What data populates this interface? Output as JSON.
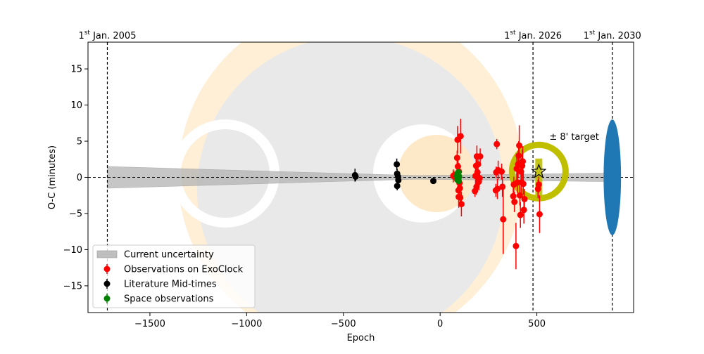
{
  "chart_data": {
    "type": "scatter",
    "xlabel": "Epoch",
    "ylabel": "O-C (minutes)",
    "xlim": [
      -1820,
      1000
    ],
    "ylim": [
      -18.7,
      18.7
    ],
    "xticks": [
      -1500,
      -1000,
      -500,
      0,
      500
    ],
    "xtick_labels": [
      "−1500",
      "−1000",
      "−500",
      "0",
      "500"
    ],
    "yticks": [
      -15,
      -10,
      -5,
      0,
      5,
      10,
      15
    ],
    "ytick_labels": [
      "−15",
      "−10",
      "−5",
      "0",
      "5",
      "10",
      "15"
    ],
    "date_markers": [
      {
        "x": -1720,
        "sup": "st",
        "pre": "1",
        "post": " Jan. 2005"
      },
      {
        "x": 480,
        "sup": "st",
        "pre": "1",
        "post": " Jan. 2026"
      },
      {
        "x": 890,
        "sup": "st",
        "pre": "1",
        "post": " Jan. 2030"
      }
    ],
    "uncertainty_band": {
      "x": [
        -1720,
        890
      ],
      "half_width_start": 1.5,
      "half_width_min": 0.25,
      "min_at": -120,
      "half_width_end": 0.6
    },
    "target_annotation": {
      "label": "± 8' target",
      "x": 510,
      "y": 0.8,
      "radius_x": 150,
      "radius_y": 3.8
    },
    "future_ellipse": {
      "x": 890,
      "y": 0,
      "half_width_x": 45,
      "half_height_y": 8
    },
    "legend": {
      "position": "lower left",
      "entries": [
        {
          "label": "Current uncertainty",
          "kind": "band",
          "color": "#bfbfbf"
        },
        {
          "label": "Observations on ExoClock",
          "kind": "errorbar",
          "color": "#ff0000"
        },
        {
          "label": "Literature Mid-times",
          "kind": "errorbar",
          "color": "#000000"
        },
        {
          "label": "Space observations",
          "kind": "errorbar",
          "color": "#008000"
        }
      ]
    },
    "colors": {
      "exoclock": "#ff0000",
      "literature": "#000000",
      "space": "#008000",
      "target_ring": "#bfbf00",
      "target_fill": "#bfbf00",
      "ellipse": "#1f77b4",
      "band": "#b3b3b3",
      "logo_ring": "#fde9c8",
      "logo_disc": "#e6e6e6"
    },
    "series": [
      {
        "name": "Literature Mid-times",
        "points": [
          [
            -440,
            0.3,
            0.9
          ],
          [
            -437,
            0.1,
            0.6
          ],
          [
            -224,
            1.8,
            0.8
          ],
          [
            -222,
            0.5,
            0.7
          ],
          [
            -218,
            0.1,
            0.5
          ],
          [
            -222,
            -1.2,
            0.6
          ],
          [
            -216,
            -0.4,
            0.5
          ],
          [
            -35,
            -0.5,
            0.2
          ]
        ]
      },
      {
        "name": "Observations on ExoClock",
        "points": [
          [
            68,
            0.2,
            0.9
          ],
          [
            72,
            0.3,
            0.6
          ],
          [
            88,
            2.7,
            1.0
          ],
          [
            90,
            5.2,
            1.9
          ],
          [
            92,
            1.5,
            1.5
          ],
          [
            94,
            -0.2,
            1.6
          ],
          [
            95,
            -1.8,
            1.3
          ],
          [
            96,
            -2.7,
            1.5
          ],
          [
            97,
            0.8,
            1.2
          ],
          [
            98,
            0.1,
            1.0
          ],
          [
            100,
            -0.8,
            1.1
          ],
          [
            102,
            -1.5,
            1.2
          ],
          [
            104,
            -2.8,
            1.0
          ],
          [
            106,
            5.7,
            2.4
          ],
          [
            110,
            -3.7,
            1.7
          ],
          [
            180,
            -1.9,
            0.8
          ],
          [
            183,
            0.2,
            1.2
          ],
          [
            186,
            1.6,
            1.0
          ],
          [
            188,
            -1.3,
            1.1
          ],
          [
            190,
            2.9,
            1.5
          ],
          [
            193,
            0.7,
            1.3
          ],
          [
            196,
            1.8,
            1.3
          ],
          [
            200,
            -0.6,
            1.2
          ],
          [
            204,
            -0.1,
            1.0
          ],
          [
            207,
            2.9,
            1.1
          ],
          [
            288,
            -1.8,
            0.9
          ],
          [
            290,
            0.7,
            0.8
          ],
          [
            293,
            4.6,
            0.7
          ],
          [
            296,
            -1.6,
            1.4
          ],
          [
            300,
            1.0,
            1.3
          ],
          [
            318,
            0.8,
            1.1
          ],
          [
            322,
            -1.3,
            1.4
          ],
          [
            326,
            -5.8,
            4.8
          ],
          [
            378,
            -2.6,
            1.2
          ],
          [
            381,
            -1.0,
            1.1
          ],
          [
            384,
            -3.4,
            1.4
          ],
          [
            392,
            -9.5,
            3.2
          ],
          [
            396,
            1.2,
            1.6
          ],
          [
            400,
            -0.7,
            1.5
          ],
          [
            403,
            1.8,
            1.9
          ],
          [
            406,
            3.0,
            2.0
          ],
          [
            409,
            4.4,
            2.8
          ],
          [
            412,
            -2.5,
            1.4
          ],
          [
            415,
            -5.2,
            1.8
          ],
          [
            418,
            0.8,
            1.9
          ],
          [
            421,
            -0.7,
            1.8
          ],
          [
            424,
            1.6,
            2.2
          ],
          [
            427,
            2.2,
            2.1
          ],
          [
            430,
            -0.9,
            1.5
          ],
          [
            433,
            -4.5,
            1.9
          ],
          [
            436,
            -3.0,
            1.4
          ],
          [
            506,
            -1.6,
            1.3
          ],
          [
            510,
            -1.0,
            1.1
          ],
          [
            514,
            -5.1,
            2.6
          ]
        ]
      },
      {
        "name": "Space observations",
        "points": [
          [
            86,
            0.2,
            0.6
          ],
          [
            88,
            -0.3,
            0.5
          ],
          [
            90,
            0.5,
            0.5
          ],
          [
            92,
            -0.1,
            0.4
          ],
          [
            94,
            0.7,
            0.4
          ],
          [
            96,
            -0.5,
            0.5
          ],
          [
            98,
            0.1,
            0.4
          ]
        ]
      }
    ]
  }
}
